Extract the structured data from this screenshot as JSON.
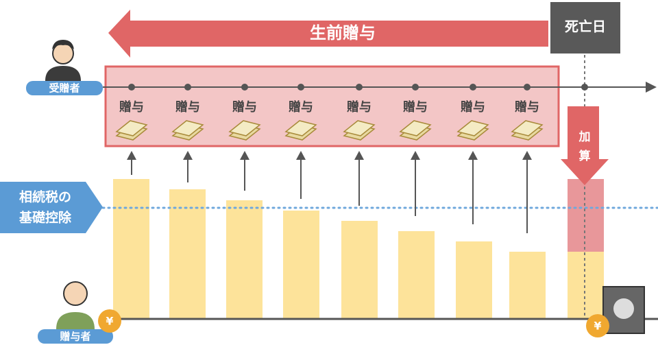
{
  "banner": {
    "label": "生前贈与",
    "death_day": "死亡日"
  },
  "recipient": "受贈者",
  "gifts": [
    "贈与",
    "贈与",
    "贈与",
    "贈与",
    "贈与",
    "贈与",
    "贈与",
    "贈与"
  ],
  "addition": [
    "加",
    "算"
  ],
  "basic_deduction": [
    "相続税の",
    "基礎控除"
  ],
  "donor": "贈与者",
  "currency": "¥"
}
